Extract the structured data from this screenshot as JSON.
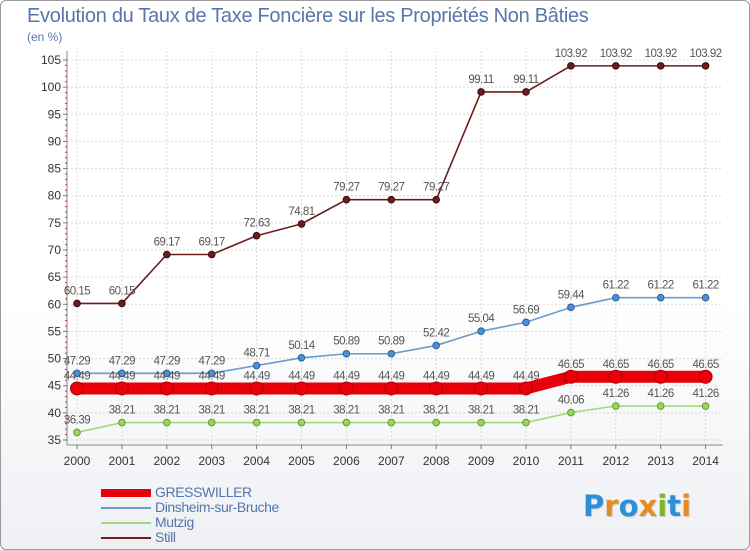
{
  "title": "Evolution du Taux de Taxe Foncière sur les Propriétés Non Bâties",
  "unit_label": "(en %)",
  "logo": {
    "letters": [
      {
        "ch": "P",
        "color": "#2f8fd6"
      },
      {
        "ch": "r",
        "color": "#e98a22"
      },
      {
        "ch": "o",
        "color": "#2f8fd6"
      },
      {
        "ch": "x",
        "color": "#e98a22"
      },
      {
        "ch": "i",
        "color": "#7ab828"
      },
      {
        "ch": "t",
        "color": "#2f8fd6"
      },
      {
        "ch": "i",
        "color": "#e98a22"
      }
    ]
  },
  "chart_data": {
    "type": "line",
    "title": "Evolution du Taux de Taxe Foncière sur les Propriétés Non Bâties",
    "ylabel": "(en %)",
    "xlabel": "",
    "x": [
      "2000",
      "2001",
      "2002",
      "2003",
      "2004",
      "2005",
      "2006",
      "2007",
      "2008",
      "2009",
      "2010",
      "2011",
      "2012",
      "2013",
      "2014"
    ],
    "ylim": [
      35,
      105
    ],
    "yticks": [
      35,
      40,
      45,
      50,
      55,
      60,
      65,
      70,
      75,
      80,
      85,
      90,
      95,
      100,
      105
    ],
    "grid": true,
    "legend_position": "bottom",
    "series": [
      {
        "name": "GRESSWILLER",
        "color": "#e8000b",
        "marker_fill": "#e8000b",
        "marker_stroke": "#b00000",
        "values": [
          44.49,
          44.49,
          44.49,
          44.49,
          44.49,
          44.49,
          44.49,
          44.49,
          44.49,
          44.49,
          44.49,
          46.65,
          46.65,
          46.65,
          46.65
        ],
        "labels": [
          "44.49",
          "44.49",
          "44.49",
          "44.49",
          "44.49",
          "44.49",
          "44.49",
          "44.49",
          "44.49",
          "44.49",
          "44.49",
          "46.65",
          "46.65",
          "46.65",
          "46.65"
        ]
      },
      {
        "name": "Dinsheim-sur-Bruche",
        "color": "#6a9ccb",
        "marker_fill": "#4a90d9",
        "marker_stroke": "#2d5f8f",
        "values": [
          47.29,
          47.29,
          47.29,
          47.29,
          48.71,
          50.14,
          50.89,
          50.89,
          52.42,
          55.04,
          56.69,
          59.44,
          61.22,
          61.22,
          61.22
        ],
        "labels": [
          "47.29",
          "47.29",
          "47.29",
          "47.29",
          "48.71",
          "50.14",
          "50.89",
          "50.89",
          "52.42",
          "55.04",
          "56.69",
          "59.44",
          "61.22",
          "61.22",
          "61.22"
        ]
      },
      {
        "name": "Mutzig",
        "color": "#a4d87a",
        "marker_fill": "#9bd85a",
        "marker_stroke": "#5f9a2e",
        "values": [
          36.39,
          38.21,
          38.21,
          38.21,
          38.21,
          38.21,
          38.21,
          38.21,
          38.21,
          38.21,
          38.21,
          40.06,
          41.26,
          41.26,
          41.26
        ],
        "labels": [
          "36.39",
          "38.21",
          "38.21",
          "38.21",
          "38.21",
          "38.21",
          "38.21",
          "38.21",
          "38.21",
          "38.21",
          "38.21",
          "40.06",
          "41.26",
          "41.26",
          "41.26"
        ]
      },
      {
        "name": "Still",
        "color": "#6b1d1d",
        "marker_fill": "#6b1d1d",
        "marker_stroke": "#3d0a0a",
        "values": [
          60.15,
          60.15,
          69.17,
          69.17,
          72.63,
          74.81,
          79.27,
          79.27,
          79.27,
          99.11,
          99.11,
          103.92,
          103.92,
          103.92,
          103.92
        ],
        "labels": [
          "60.15",
          "60.15",
          "69.17",
          "69.17",
          "72.63",
          "74.81",
          "79.27",
          "79.27",
          "79.27",
          "99.11",
          "99.11",
          "103.92",
          "103.92",
          "103.92",
          "103.92"
        ]
      }
    ]
  }
}
